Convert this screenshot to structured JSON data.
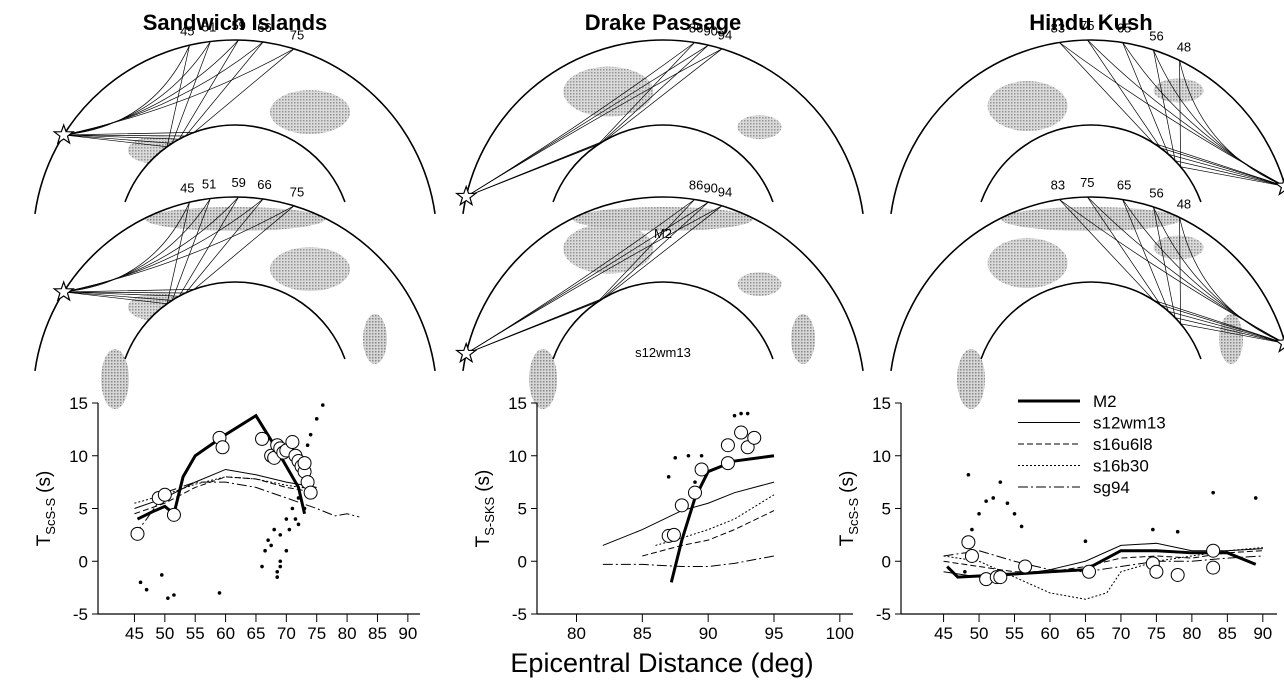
{
  "figure": {
    "xlabel": "Epicentral Distance (deg)",
    "diagrams": [
      {
        "title": "Sandwich Islands",
        "distances": [
          45,
          51,
          59,
          66,
          75
        ]
      },
      {
        "title": "Drake Passage",
        "distances": [
          86,
          90,
          94
        ],
        "model_labels": [
          "M2",
          "s12wm13"
        ]
      },
      {
        "title": "Hindu Kush",
        "distances": [
          83,
          75,
          65,
          56,
          48
        ]
      }
    ]
  },
  "chart_data": [
    {
      "type": "scatter",
      "ylabel": {
        "main": "T",
        "sub": "ScS-S",
        "unit": "(s)"
      },
      "xlim": [
        39,
        92
      ],
      "xticks": [
        45,
        50,
        55,
        60,
        65,
        70,
        75,
        80,
        85,
        90
      ],
      "ylim": [
        -5,
        15
      ],
      "yticks": [
        -5,
        0,
        5,
        10,
        15
      ],
      "legend": false,
      "circles": {
        "x": [
          45.5,
          49,
          50,
          51.5,
          59,
          59.5,
          66,
          67.5,
          68,
          68.5,
          69,
          69.5,
          70,
          71,
          71.5,
          72,
          72.5,
          73,
          73.5,
          74,
          73
        ],
        "values": [
          2.6,
          6,
          6.3,
          4.4,
          11.7,
          10.8,
          11.6,
          10,
          9.8,
          11,
          10.7,
          10.3,
          10.5,
          11.3,
          10,
          9.5,
          9,
          8.5,
          7.5,
          6.5,
          9.3
        ]
      },
      "dots": {
        "x": [
          46,
          47,
          49.5,
          50.5,
          51.5,
          59,
          66,
          66.5,
          67,
          67.5,
          68,
          68.5,
          68.5,
          69,
          69,
          70,
          70.5,
          71,
          71.5,
          72,
          72,
          73,
          73.5,
          74,
          75,
          76,
          69,
          70
        ],
        "values": [
          -2,
          -2.7,
          -1.3,
          -3.5,
          -3.2,
          -3,
          -0.5,
          1,
          2,
          1.5,
          3,
          -1,
          -1.5,
          0,
          2.5,
          4,
          3,
          5,
          4,
          3.5,
          6,
          5,
          11,
          12,
          13.5,
          14.8,
          -0.5,
          1
        ]
      },
      "series": [
        {
          "name": "M2",
          "color": "#000",
          "width": 3,
          "dash": "none",
          "x": [
            45.5,
            48,
            50,
            51.5,
            53,
            55,
            60,
            65,
            68,
            70,
            72,
            73
          ],
          "values": [
            4,
            4.7,
            5.2,
            4.5,
            8,
            10,
            12,
            13.8,
            11,
            9,
            7,
            4.5
          ]
        },
        {
          "name": "s12wm13",
          "color": "#000",
          "width": 1,
          "dash": "none",
          "x": [
            45,
            50,
            55,
            60,
            65,
            70,
            75
          ],
          "values": [
            5,
            6,
            7.5,
            8.7,
            8.2,
            7.5,
            7
          ]
        },
        {
          "name": "s16u6l8",
          "color": "#000",
          "width": 1,
          "dash": "6,3",
          "x": [
            45,
            50,
            55,
            60,
            65,
            70,
            75
          ],
          "values": [
            4.5,
            5.5,
            7,
            8,
            7.8,
            7,
            6.5
          ]
        },
        {
          "name": "s16b30",
          "color": "#000",
          "width": 1,
          "dash": "2,2",
          "x": [
            45,
            50,
            55,
            60,
            65,
            70,
            75
          ],
          "values": [
            5.5,
            6.3,
            7.3,
            8,
            7.8,
            7.2,
            6.8
          ]
        },
        {
          "name": "sg94",
          "color": "#000",
          "width": 1,
          "dash": "10,3,2,3",
          "x": [
            45,
            47,
            50,
            55,
            60,
            65,
            70,
            75,
            78,
            80,
            82
          ],
          "values": [
            2.5,
            4,
            6.5,
            7.5,
            7.5,
            7,
            6,
            5,
            4.3,
            4.5,
            4.2
          ]
        }
      ]
    },
    {
      "type": "scatter",
      "ylabel": {
        "main": "T",
        "sub": "S-SKS",
        "unit": "(s)"
      },
      "xlim": [
        77,
        101
      ],
      "xticks": [
        80,
        85,
        90,
        95,
        100
      ],
      "ylim": [
        -5,
        15
      ],
      "yticks": [
        -5,
        0,
        5,
        10,
        15
      ],
      "legend": false,
      "circles": {
        "x": [
          87,
          87.4,
          88,
          89,
          89.5,
          91.5,
          91.5,
          92.5,
          93,
          93.5
        ],
        "values": [
          2.4,
          2.5,
          5.3,
          6.5,
          8.7,
          9.3,
          11,
          12.2,
          10.8,
          11.7
        ]
      },
      "dots": {
        "x": [
          87,
          87.5,
          88.5,
          89,
          89.5,
          92,
          92.5,
          93
        ],
        "values": [
          8,
          9.8,
          10,
          7.5,
          10,
          13.8,
          14,
          14
        ]
      },
      "series": [
        {
          "name": "M2",
          "color": "#000",
          "width": 3,
          "dash": "none",
          "x": [
            87.2,
            88,
            89,
            90,
            92,
            95
          ],
          "values": [
            -2,
            2,
            6,
            8.5,
            9.5,
            10
          ]
        },
        {
          "name": "s12wm13",
          "color": "#000",
          "width": 1,
          "dash": "none",
          "x": [
            82,
            85,
            88,
            90,
            92,
            95
          ],
          "values": [
            1.5,
            3,
            4.8,
            5.5,
            6.5,
            7.5
          ]
        },
        {
          "name": "s16u6l8",
          "color": "#000",
          "width": 1,
          "dash": "6,3",
          "x": [
            85,
            88,
            90,
            92,
            95
          ],
          "values": [
            0.5,
            1.5,
            2,
            3,
            4.8
          ]
        },
        {
          "name": "s16b30",
          "color": "#000",
          "width": 1,
          "dash": "2,2",
          "x": [
            86,
            88,
            90,
            92,
            95
          ],
          "values": [
            1.5,
            2.2,
            3,
            4,
            6.3
          ]
        },
        {
          "name": "sg94",
          "color": "#000",
          "width": 1,
          "dash": "10,3,2,3",
          "x": [
            82,
            85,
            88,
            90,
            92,
            95
          ],
          "values": [
            -0.3,
            -0.3,
            -0.5,
            -0.5,
            -0.2,
            0.5
          ]
        }
      ]
    },
    {
      "type": "scatter",
      "ylabel": {
        "main": "T",
        "sub": "ScS-S",
        "unit": "(s)"
      },
      "xlim": [
        39,
        92
      ],
      "xticks": [
        45,
        50,
        55,
        60,
        65,
        70,
        75,
        80,
        85,
        90
      ],
      "ylim": [
        -5,
        15
      ],
      "yticks": [
        -5,
        0,
        5,
        10,
        15
      ],
      "legend": true,
      "circles": {
        "x": [
          48.5,
          49,
          51,
          52.5,
          53,
          56.5,
          65.5,
          74.5,
          75,
          78,
          83,
          83
        ],
        "values": [
          1.8,
          0.5,
          -1.7,
          -1.5,
          -1.5,
          -0.5,
          -1,
          -0.2,
          -1,
          -1.3,
          1,
          -0.6
        ]
      },
      "dots": {
        "x": [
          48.5,
          49,
          50,
          51,
          52,
          53,
          54,
          55,
          56,
          65,
          74.5,
          78,
          83,
          89,
          48,
          51
        ],
        "values": [
          8.2,
          3,
          4.5,
          5.7,
          6,
          7.5,
          5.5,
          4.5,
          3.3,
          1.9,
          3,
          2.8,
          6.5,
          6,
          -1,
          -1.5
        ]
      },
      "series": [
        {
          "name": "M2",
          "color": "#000",
          "width": 3,
          "dash": "none",
          "x": [
            45.5,
            47,
            50,
            55,
            60,
            65,
            70,
            75,
            80,
            85,
            89
          ],
          "values": [
            -0.5,
            -1.5,
            -1.4,
            -1.2,
            -1,
            -0.8,
            1,
            1,
            0.8,
            0.8,
            -0.3
          ]
        },
        {
          "name": "s12wm13",
          "color": "#000",
          "width": 1,
          "dash": "none",
          "x": [
            45,
            50,
            55,
            60,
            65,
            70,
            75,
            80,
            85,
            90
          ],
          "values": [
            -1,
            -1.5,
            -1.3,
            -0.8,
            0,
            1.5,
            1.7,
            1,
            1,
            1.2
          ]
        },
        {
          "name": "s16u6l8",
          "color": "#000",
          "width": 1,
          "dash": "6,3",
          "x": [
            45,
            50,
            55,
            60,
            65,
            70,
            75,
            80,
            85,
            90
          ],
          "values": [
            0,
            -0.5,
            -1,
            -1,
            -0.5,
            0.3,
            0.5,
            0.3,
            0.8,
            1
          ]
        },
        {
          "name": "s16b30",
          "color": "#000",
          "width": 1,
          "dash": "2,2",
          "x": [
            45,
            50,
            55,
            60,
            65,
            68,
            70,
            75,
            80,
            85,
            90
          ],
          "values": [
            0.5,
            0,
            -1.5,
            -3,
            -3.6,
            -3,
            -1,
            0,
            0.5,
            1,
            1.3
          ]
        },
        {
          "name": "sg94",
          "color": "#000",
          "width": 1,
          "dash": "10,3,2,3",
          "x": [
            45,
            50,
            55,
            60,
            65,
            70,
            75,
            80,
            85,
            90
          ],
          "values": [
            0.5,
            1,
            0,
            -0.8,
            -1,
            -0.5,
            0,
            0,
            0.3,
            0.5
          ]
        }
      ]
    }
  ]
}
